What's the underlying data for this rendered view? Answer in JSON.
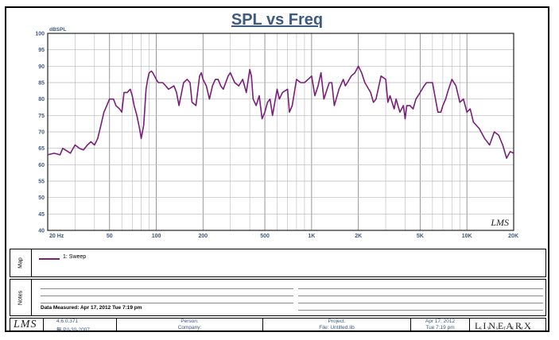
{
  "chart_data": {
    "type": "line",
    "title": "SPL vs Freq",
    "ylabel": "dBSPL",
    "xscale": "log",
    "xlim": [
      20,
      20000
    ],
    "ylim": [
      40,
      100
    ],
    "yticks": [
      40,
      45,
      50,
      55,
      60,
      65,
      70,
      75,
      80,
      85,
      90,
      95,
      100
    ],
    "xticks": [
      {
        "value": 20,
        "label": "20 Hz"
      },
      {
        "value": 50,
        "label": "50"
      },
      {
        "value": 100,
        "label": "100"
      },
      {
        "value": 200,
        "label": "200"
      },
      {
        "value": 500,
        "label": "500"
      },
      {
        "value": 1000,
        "label": "1K"
      },
      {
        "value": 2000,
        "label": "2K"
      },
      {
        "value": 5000,
        "label": "5K"
      },
      {
        "value": 10000,
        "label": "10K"
      },
      {
        "value": 20000,
        "label": "20K"
      }
    ],
    "grid": true,
    "watermark": "LMS",
    "series": [
      {
        "name": "1: Sweep",
        "color": "#7a1e7a",
        "x": [
          20,
          22,
          24,
          25,
          27,
          28,
          30,
          32,
          34,
          36,
          38,
          40,
          42,
          44,
          46,
          48,
          50,
          53,
          55,
          58,
          60,
          62,
          65,
          68,
          70,
          72,
          75,
          78,
          80,
          83,
          86,
          88,
          90,
          93,
          95,
          100,
          103,
          110,
          115,
          120,
          130,
          135,
          140,
          150,
          158,
          165,
          170,
          180,
          190,
          195,
          200,
          210,
          220,
          230,
          240,
          250,
          260,
          270,
          290,
          300,
          320,
          340,
          360,
          380,
          400,
          410,
          420,
          440,
          460,
          480,
          500,
          520,
          540,
          560,
          600,
          620,
          650,
          700,
          720,
          750,
          800,
          850,
          900,
          950,
          1000,
          1050,
          1100,
          1150,
          1200,
          1300,
          1350,
          1400,
          1500,
          1600,
          1650,
          1700,
          1800,
          1900,
          2000,
          2100,
          2200,
          2400,
          2500,
          2600,
          2800,
          3000,
          3100,
          3200,
          3400,
          3500,
          3700,
          3900,
          4000,
          4100,
          4300,
          4500,
          4700,
          5000,
          5300,
          5500,
          6000,
          6500,
          6800,
          7000,
          7300,
          7500,
          8000,
          8500,
          9000,
          9500,
          10000,
          10500,
          11000,
          12000,
          13000,
          14000,
          15000,
          16000,
          17000,
          18000,
          19000,
          20000
        ],
        "values": [
          63,
          63.5,
          63,
          65,
          64,
          63.5,
          66,
          65,
          64.5,
          66,
          67,
          66,
          68,
          72,
          76,
          78,
          80,
          80,
          78,
          77,
          76,
          82,
          82,
          83,
          81,
          78,
          75,
          71,
          68,
          72,
          83,
          86,
          88,
          88.5,
          88,
          86,
          85,
          85,
          84,
          83,
          84,
          82,
          78,
          85,
          86,
          85,
          79,
          78,
          87,
          88,
          86,
          84,
          80,
          84,
          86,
          86,
          84,
          83,
          87,
          88,
          85,
          84,
          86,
          82,
          89,
          87,
          80,
          78,
          81,
          74,
          76,
          79,
          80,
          75,
          83,
          80,
          82,
          83,
          76,
          78,
          86,
          85,
          85,
          86,
          87,
          81,
          84,
          88,
          80,
          85,
          85,
          78,
          83,
          86,
          84,
          85,
          87,
          88,
          90,
          88,
          85,
          82,
          79,
          80,
          87,
          86,
          79,
          81,
          77,
          80,
          76,
          78,
          74,
          78,
          78,
          77,
          80,
          82,
          84,
          85,
          85,
          76,
          76,
          78,
          80,
          82,
          86,
          84,
          79,
          80,
          76,
          77,
          73,
          71,
          68,
          66,
          70,
          69,
          66,
          62,
          64,
          63.5
        ]
      }
    ]
  },
  "map": {
    "tab_label": "Map",
    "legend_label": "1: Sweep"
  },
  "notes": {
    "tab_label": "Notes",
    "measured": "Data Measured: Apr 17, 2012  Tue  7:19 pm"
  },
  "footer": {
    "logo": "LMS",
    "version": "4.6.0.371",
    "serial": "無 P/l-30-2007",
    "person_label": "Person:",
    "company_label": "Company:",
    "project_label": "Project:",
    "file_label": "File: Untitled.lib",
    "date": "Apr 17, 2012",
    "time": "Tue  7:19 pm",
    "brand": "LINEARX",
    "brand_sub": "SYSTEMS"
  },
  "colors": {
    "curve": "#7a1e7a",
    "title": "#3d5a80",
    "grid": "#b8b8b8"
  }
}
